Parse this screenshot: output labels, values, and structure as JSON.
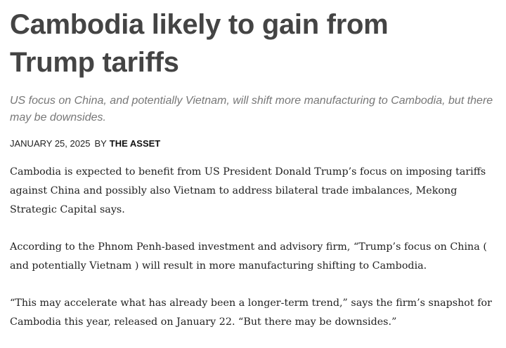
{
  "article": {
    "title": "Cambodia likely to gain from Trump tariffs",
    "subtitle": "US focus on China, and potentially Vietnam, will shift more manufacturing to Cambodia, but there may be downsides.",
    "date": "JANUARY 25, 2025",
    "byline_prefix": "BY",
    "author": "THE ASSET",
    "paragraphs": [
      "Cambodia is expected to benefit from US President Donald Trump’s focus on imposing tariffs against China and possibly also Vietnam to address bilateral trade imbalances, Mekong Strategic Capital says.",
      "According to the Phnom Penh-based investment and advisory firm, “Trump’s focus on China ( and potentially Vietnam ) will result in more manufacturing shifting to Cambodia.",
      "“This may accelerate what has already been a longer-term trend,” says the firm’s snapshot for Cambodia this year, released on January 22. “But there may be downsides.”"
    ]
  }
}
